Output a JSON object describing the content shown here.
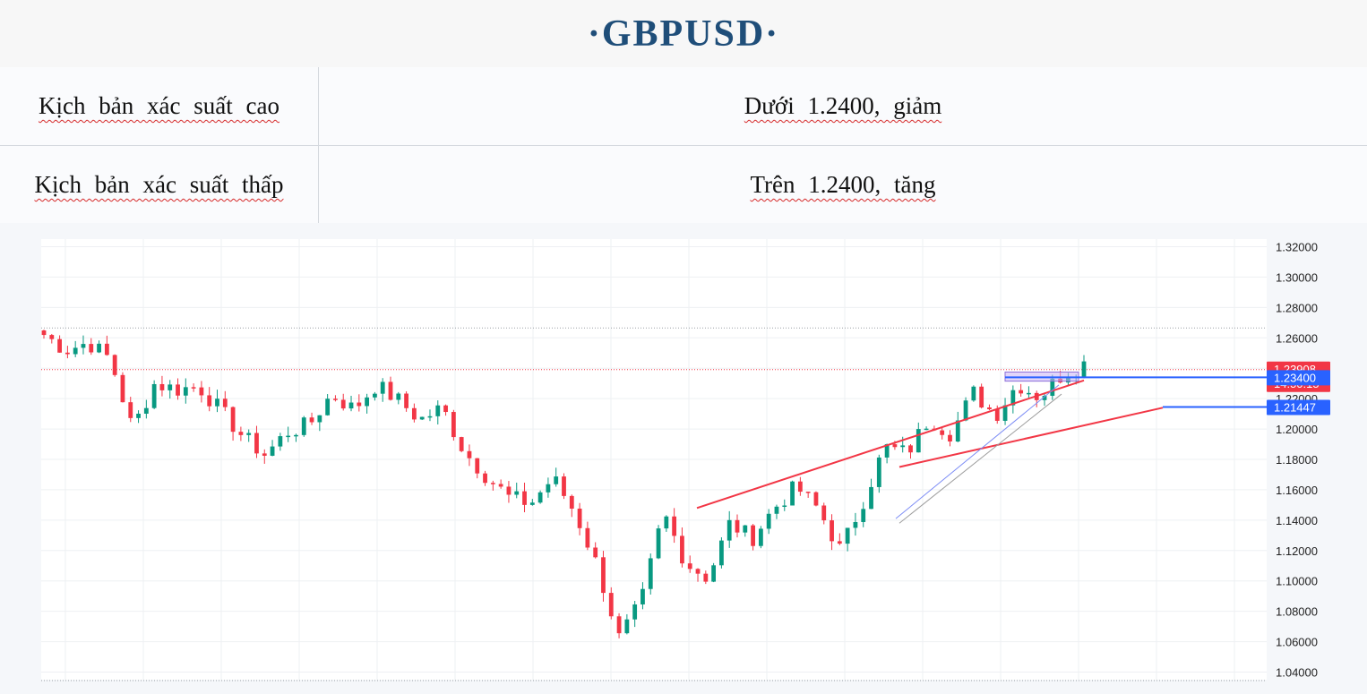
{
  "title": "·GBPUSD·",
  "scenarios": [
    {
      "label": "Kịch bản xác suất cao",
      "value": "Dưới 1.2400, giảm"
    },
    {
      "label": "Kịch bản xác suất thấp",
      "value": "Trên 1.2400, tăng"
    }
  ],
  "colors": {
    "up": "#089981",
    "down": "#f23645",
    "trend": "#f23645",
    "level": "#2962ff",
    "zone": "#c9b3f5"
  },
  "chart_data": {
    "type": "candlestick",
    "ylim": [
      1.035,
      1.325
    ],
    "y_ticks": [
      "1.32000",
      "1.30000",
      "1.28000",
      "1.26000",
      "1.24000",
      "1.22000",
      "1.20000",
      "1.18000",
      "1.16000",
      "1.14000",
      "1.12000",
      "1.10000",
      "1.08000",
      "1.06000",
      "1.04000"
    ],
    "anchors": [
      1.262,
      1.252,
      1.257,
      1.246,
      1.2,
      1.23,
      1.226,
      1.228,
      1.212,
      1.195,
      1.183,
      1.198,
      1.203,
      1.223,
      1.213,
      1.229,
      1.219,
      1.206,
      1.214,
      1.185,
      1.169,
      1.155,
      1.151,
      1.168,
      1.145,
      1.11,
      1.062,
      1.086,
      1.145,
      1.112,
      1.102,
      1.138,
      1.128,
      1.148,
      1.162,
      1.147,
      1.12,
      1.152,
      1.188,
      1.184,
      1.207,
      1.197,
      1.224,
      1.209,
      1.23,
      1.221,
      1.236,
      1.243
    ],
    "price_tags": [
      {
        "value": 1.23908,
        "label": "1.23908",
        "sublabel": "14:50:15",
        "color": "#f23645"
      },
      {
        "value": 1.234,
        "label": "1.23400",
        "color": "#2962ff"
      },
      {
        "value": 1.21447,
        "label": "1.21447",
        "color": "#2962ff"
      }
    ],
    "horizontal_levels": [
      1.2665,
      1.2391
    ],
    "support_resistance": [
      1.234,
      1.2145
    ],
    "trendlines": [
      {
        "from": [
          0.5,
          1.148
        ],
        "to": [
          1.0,
          1.232
        ]
      },
      {
        "from": [
          0.55,
          1.141
        ],
        "to": [
          0.93,
          1.218
        ]
      }
    ]
  }
}
